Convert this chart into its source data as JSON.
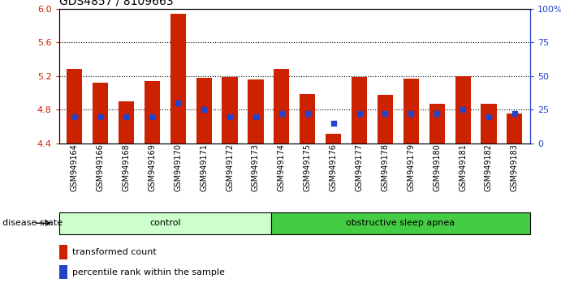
{
  "title": "GDS4857 / 8109663",
  "samples": [
    "GSM949164",
    "GSM949166",
    "GSM949168",
    "GSM949169",
    "GSM949170",
    "GSM949171",
    "GSM949172",
    "GSM949173",
    "GSM949174",
    "GSM949175",
    "GSM949176",
    "GSM949177",
    "GSM949178",
    "GSM949179",
    "GSM949180",
    "GSM949181",
    "GSM949182",
    "GSM949183"
  ],
  "transformed_count": [
    5.28,
    5.12,
    4.9,
    5.14,
    5.94,
    5.18,
    5.19,
    5.16,
    5.28,
    4.99,
    4.52,
    5.19,
    4.98,
    5.17,
    4.87,
    5.2,
    4.87,
    4.76
  ],
  "percentile_rank": [
    20,
    20,
    20,
    20,
    30,
    25,
    20,
    20,
    22,
    22,
    15,
    22,
    22,
    22,
    22,
    25,
    20,
    22
  ],
  "bar_bottom": 4.4,
  "ylim": [
    4.4,
    6.0
  ],
  "right_ylim": [
    0,
    100
  ],
  "right_yticks": [
    0,
    25,
    50,
    75,
    100
  ],
  "right_yticklabels": [
    "0",
    "25",
    "50",
    "75",
    "100%"
  ],
  "left_yticks": [
    4.4,
    4.8,
    5.2,
    5.6,
    6.0
  ],
  "bar_color": "#cc2200",
  "percentile_color": "#2244cc",
  "bar_width": 0.6,
  "control_samples": 8,
  "control_label": "control",
  "osa_label": "obstructive sleep apnea",
  "control_color": "#ccffcc",
  "osa_color": "#44cc44",
  "disease_state_label": "disease state",
  "legend_bar_label": "transformed count",
  "legend_pct_label": "percentile rank within the sample",
  "xlabel_fontsize": 7,
  "title_fontsize": 10,
  "tick_fontsize": 8
}
